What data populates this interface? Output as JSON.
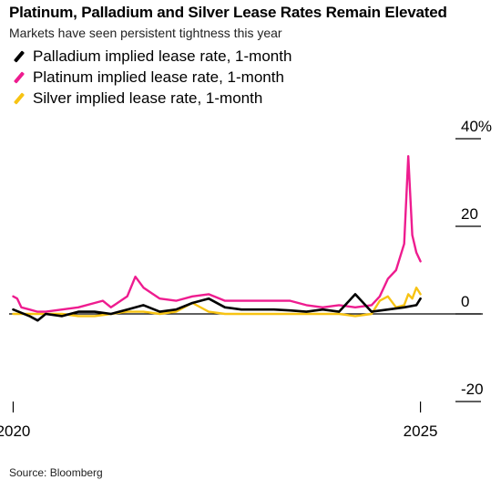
{
  "header": {
    "title": "Platinum, Palladium and Silver Lease Rates Remain Elevated",
    "subtitle": "Markets have seen persistent tightness this year"
  },
  "footer": {
    "source": "Source: Bloomberg"
  },
  "colors": {
    "palladium": "#000000",
    "platinum": "#ee1c8f",
    "silver": "#f7c313"
  },
  "chart_data": {
    "type": "line",
    "title": "Platinum, Palladium and Silver Lease Rates Remain Elevated",
    "subtitle": "Markets have seen persistent tightness this year",
    "xlabel": "",
    "ylabel": "",
    "x_unit": "year",
    "xlim": [
      2019.95,
      2025.15
    ],
    "ylim": [
      -20,
      40
    ],
    "y_ticks": [
      40,
      20,
      0,
      -20
    ],
    "y_tick_labels": [
      "40%",
      "20",
      "0",
      "-20"
    ],
    "x_ticks": [
      2020,
      2025
    ],
    "x_tick_labels": [
      "2020",
      "2025"
    ],
    "grid": false,
    "legend_position": "top-left",
    "series": [
      {
        "name": "Palladium implied lease rate, 1-month",
        "color": "#000000",
        "x": [
          2020.0,
          2020.2,
          2020.3,
          2020.4,
          2020.6,
          2020.8,
          2021.0,
          2021.2,
          2021.4,
          2021.6,
          2021.8,
          2022.0,
          2022.2,
          2022.4,
          2022.6,
          2022.8,
          2023.0,
          2023.2,
          2023.4,
          2023.6,
          2023.8,
          2024.0,
          2024.2,
          2024.4,
          2024.6,
          2024.8,
          2024.95,
          2025.0
        ],
        "y": [
          1.0,
          -0.5,
          -1.5,
          0.0,
          -0.5,
          0.5,
          0.5,
          0.0,
          1.0,
          2.0,
          0.5,
          1.0,
          2.5,
          3.5,
          1.5,
          1.0,
          1.0,
          1.0,
          0.8,
          0.5,
          1.0,
          0.5,
          4.5,
          0.5,
          1.0,
          1.5,
          2.0,
          3.5
        ]
      },
      {
        "name": "Platinum implied lease rate, 1-month",
        "color": "#ee1c8f",
        "x": [
          2020.0,
          2020.05,
          2020.1,
          2020.2,
          2020.3,
          2020.4,
          2020.6,
          2020.8,
          2021.0,
          2021.1,
          2021.2,
          2021.4,
          2021.5,
          2021.6,
          2021.8,
          2022.0,
          2022.2,
          2022.4,
          2022.6,
          2022.8,
          2023.0,
          2023.2,
          2023.4,
          2023.6,
          2023.8,
          2024.0,
          2024.2,
          2024.4,
          2024.5,
          2024.6,
          2024.7,
          2024.8,
          2024.85,
          2024.9,
          2024.95,
          2025.0
        ],
        "y": [
          4.0,
          3.5,
          1.5,
          1.0,
          0.5,
          0.5,
          1.0,
          1.5,
          2.5,
          3.0,
          1.5,
          4.0,
          8.5,
          6.0,
          3.5,
          3.0,
          4.0,
          4.5,
          3.0,
          3.0,
          3.0,
          3.0,
          3.0,
          2.0,
          1.5,
          2.0,
          1.5,
          2.0,
          4.0,
          8.0,
          10.0,
          16.0,
          36.0,
          18.0,
          14.0,
          12.0
        ]
      },
      {
        "name": "Silver implied lease rate, 1-month",
        "color": "#f7c313",
        "x": [
          2020.0,
          2020.2,
          2020.4,
          2020.6,
          2020.8,
          2021.0,
          2021.2,
          2021.4,
          2021.6,
          2021.8,
          2022.0,
          2022.2,
          2022.4,
          2022.6,
          2022.8,
          2023.0,
          2023.2,
          2023.4,
          2023.6,
          2023.8,
          2024.0,
          2024.2,
          2024.4,
          2024.5,
          2024.6,
          2024.7,
          2024.8,
          2024.85,
          2024.9,
          2024.95,
          2025.0
        ],
        "y": [
          0.0,
          0.0,
          0.0,
          0.0,
          -0.5,
          -0.5,
          0.0,
          0.5,
          0.5,
          0.0,
          0.5,
          2.5,
          0.5,
          0.0,
          0.0,
          0.0,
          0.0,
          0.0,
          0.0,
          0.0,
          0.0,
          -0.5,
          0.0,
          3.0,
          4.0,
          1.5,
          2.0,
          4.5,
          3.5,
          6.0,
          4.5
        ]
      }
    ]
  }
}
